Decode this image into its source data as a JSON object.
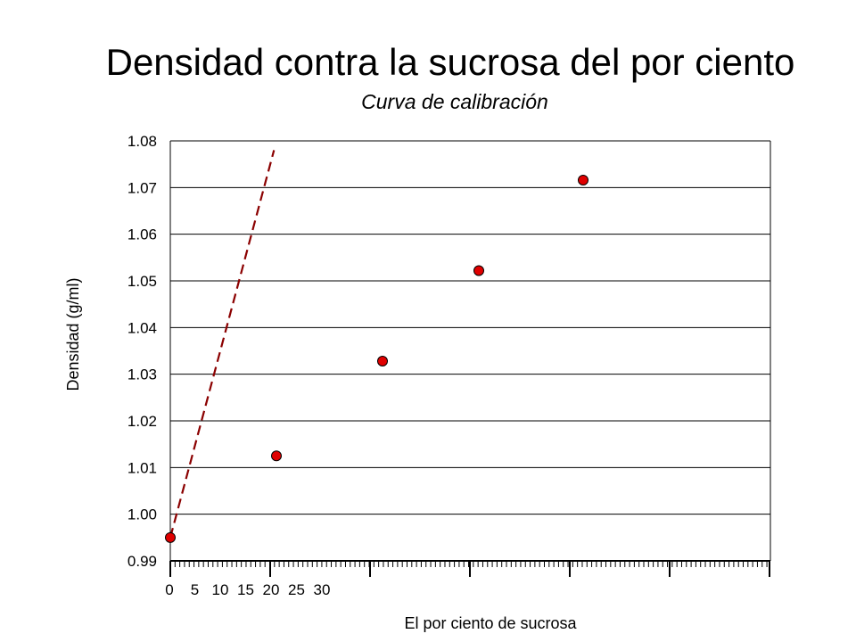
{
  "chart_data": {
    "type": "scatter",
    "title": "Densidad contra la sucrosa del por ciento",
    "subtitle": "Curva de calibración",
    "xlabel": "El por ciento de sucrosa",
    "ylabel": "Densidad (g/ml)",
    "ylim": [
      0.99,
      1.08
    ],
    "y_ticks": [
      "0.99",
      "1.00",
      "1.01",
      "1.02",
      "1.03",
      "1.04",
      "1.05",
      "1.06",
      "1.07",
      "1.08"
    ],
    "x_tick_labels": [
      "0",
      "5",
      "10",
      "15",
      "20",
      "25",
      "30"
    ],
    "grid": "horizontal",
    "legend": "none",
    "series": [
      {
        "x": [
          0,
          5,
          10,
          15,
          20
        ],
        "y": [
          0.995,
          1.0125,
          1.0328,
          1.0522,
          1.0716
        ],
        "marker_color": "#e00000",
        "marker_edge": "#000000"
      }
    ],
    "trendline": {
      "style": "dashed",
      "color": "#8b0000",
      "x": [
        0,
        21.9
      ],
      "y": [
        0.995,
        1.078
      ]
    }
  }
}
